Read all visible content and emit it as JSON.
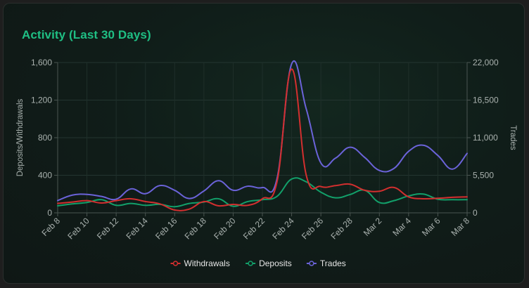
{
  "card": {
    "title": "Activity (Last 30 Days)"
  },
  "chart_data": {
    "type": "line",
    "title": "Activity (Last 30 Days)",
    "xlabel": "",
    "ylabel_left": "Deposits/Withdrawals",
    "ylabel_right": "Trades",
    "ylim_left": [
      0,
      1600
    ],
    "ylim_right": [
      0,
      22000
    ],
    "yticks_left": [
      "0",
      "400",
      "800",
      "1,200",
      "1,600"
    ],
    "yticks_right": [
      "0",
      "5,500",
      "11,000",
      "16,500",
      "22,000"
    ],
    "x": [
      "Feb 8",
      "Feb 9",
      "Feb 10",
      "Feb 11",
      "Feb 12",
      "Feb 13",
      "Feb 14",
      "Feb 15",
      "Feb 16",
      "Feb 17",
      "Feb 18",
      "Feb 19",
      "Feb 20",
      "Feb 21",
      "Feb 22",
      "Feb 23",
      "Feb 24",
      "Feb 25",
      "Feb 26",
      "Feb 27",
      "Feb 28",
      "Mar 1",
      "Mar 2",
      "Mar 3",
      "Mar 4",
      "Mar 5",
      "Mar 6",
      "Mar 7",
      "Mar 8"
    ],
    "xticks": [
      "Feb 8",
      "Feb 10",
      "Feb 12",
      "Feb 14",
      "Feb 16",
      "Feb 18",
      "Feb 20",
      "Feb 22",
      "Feb 24",
      "Feb 26",
      "Feb 28",
      "Mar 2",
      "Mar 4",
      "Mar 6",
      "Mar 8"
    ],
    "legend_position": "bottom",
    "series": [
      {
        "name": "Withdrawals",
        "axis": "left",
        "color": "#d32f2f",
        "values": [
          100,
          115,
          130,
          105,
          130,
          150,
          120,
          95,
          30,
          40,
          120,
          75,
          90,
          80,
          150,
          330,
          1530,
          400,
          280,
          290,
          305,
          240,
          230,
          270,
          170,
          150,
          155,
          165,
          170
        ]
      },
      {
        "name": "Deposits",
        "axis": "left",
        "color": "#12a06a",
        "values": [
          75,
          95,
          110,
          140,
          80,
          100,
          80,
          90,
          65,
          100,
          115,
          150,
          70,
          120,
          140,
          175,
          360,
          330,
          220,
          160,
          195,
          240,
          110,
          130,
          180,
          200,
          145,
          140,
          140
        ]
      },
      {
        "name": "Trades",
        "axis": "right",
        "color": "#6b63d9",
        "values": [
          1800,
          2600,
          2700,
          2400,
          2000,
          3500,
          2800,
          4000,
          3300,
          2100,
          3200,
          4700,
          3300,
          3900,
          3700,
          5000,
          21800,
          15200,
          7300,
          8000,
          9600,
          8100,
          6200,
          6500,
          9000,
          9900,
          8400,
          6400,
          8700
        ]
      }
    ]
  }
}
